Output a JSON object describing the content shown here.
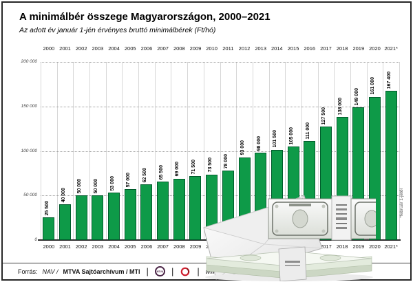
{
  "chart_data": {
    "type": "bar",
    "title": "A minimálbér összege Magyarországon, 2000–2021",
    "subtitle": "Az adott év január 1-jén érvényes bruttó minimálbérek (Ft/hó)",
    "categories": [
      "2000",
      "2001",
      "2002",
      "2003",
      "2004",
      "2005",
      "2006",
      "2007",
      "2008",
      "2009",
      "2010",
      "2011",
      "2012",
      "2013",
      "2014",
      "2015",
      "2016",
      "2017",
      "2018",
      "2019",
      "2020",
      "2021*"
    ],
    "values": [
      25500,
      40000,
      50000,
      50000,
      53000,
      57000,
      62500,
      65500,
      69000,
      71500,
      73500,
      78000,
      93000,
      98000,
      101500,
      105000,
      111000,
      127500,
      138000,
      149000,
      161000,
      167400
    ],
    "value_labels": [
      "25 500",
      "40 000",
      "50 000",
      "50 000",
      "53 000",
      "57 000",
      "62 500",
      "65 500",
      "69 000",
      "71 500",
      "73 500",
      "78 000",
      "93 000",
      "98 000",
      "101 500",
      "105 000",
      "111 000",
      "127 500",
      "138 000",
      "149 000",
      "161 000",
      "167 400"
    ],
    "y_tick_labels": [
      "0",
      "50 000",
      "100 000",
      "150 000",
      "200 000"
    ],
    "y_tick_values": [
      0,
      50000,
      100000,
      150000,
      200000
    ],
    "ylim": [
      0,
      200000
    ],
    "xlabel": "",
    "ylabel": "",
    "unit": "Ft/hó",
    "footnote": "*február 1-jétől",
    "bar_color": "#0e9a48",
    "bar_border": "#005a2b",
    "grid": true,
    "legend": "none"
  },
  "footer": {
    "source_prefix": "Forrás:",
    "source_agency": "NAV /",
    "source_bold": "MTVA Sajtóarchívum / MTI",
    "divider": "|",
    "mtva_label": "MTVA",
    "website": "www.mti.hu"
  },
  "decor": {
    "illustration": "envelope-and-banknotes"
  }
}
